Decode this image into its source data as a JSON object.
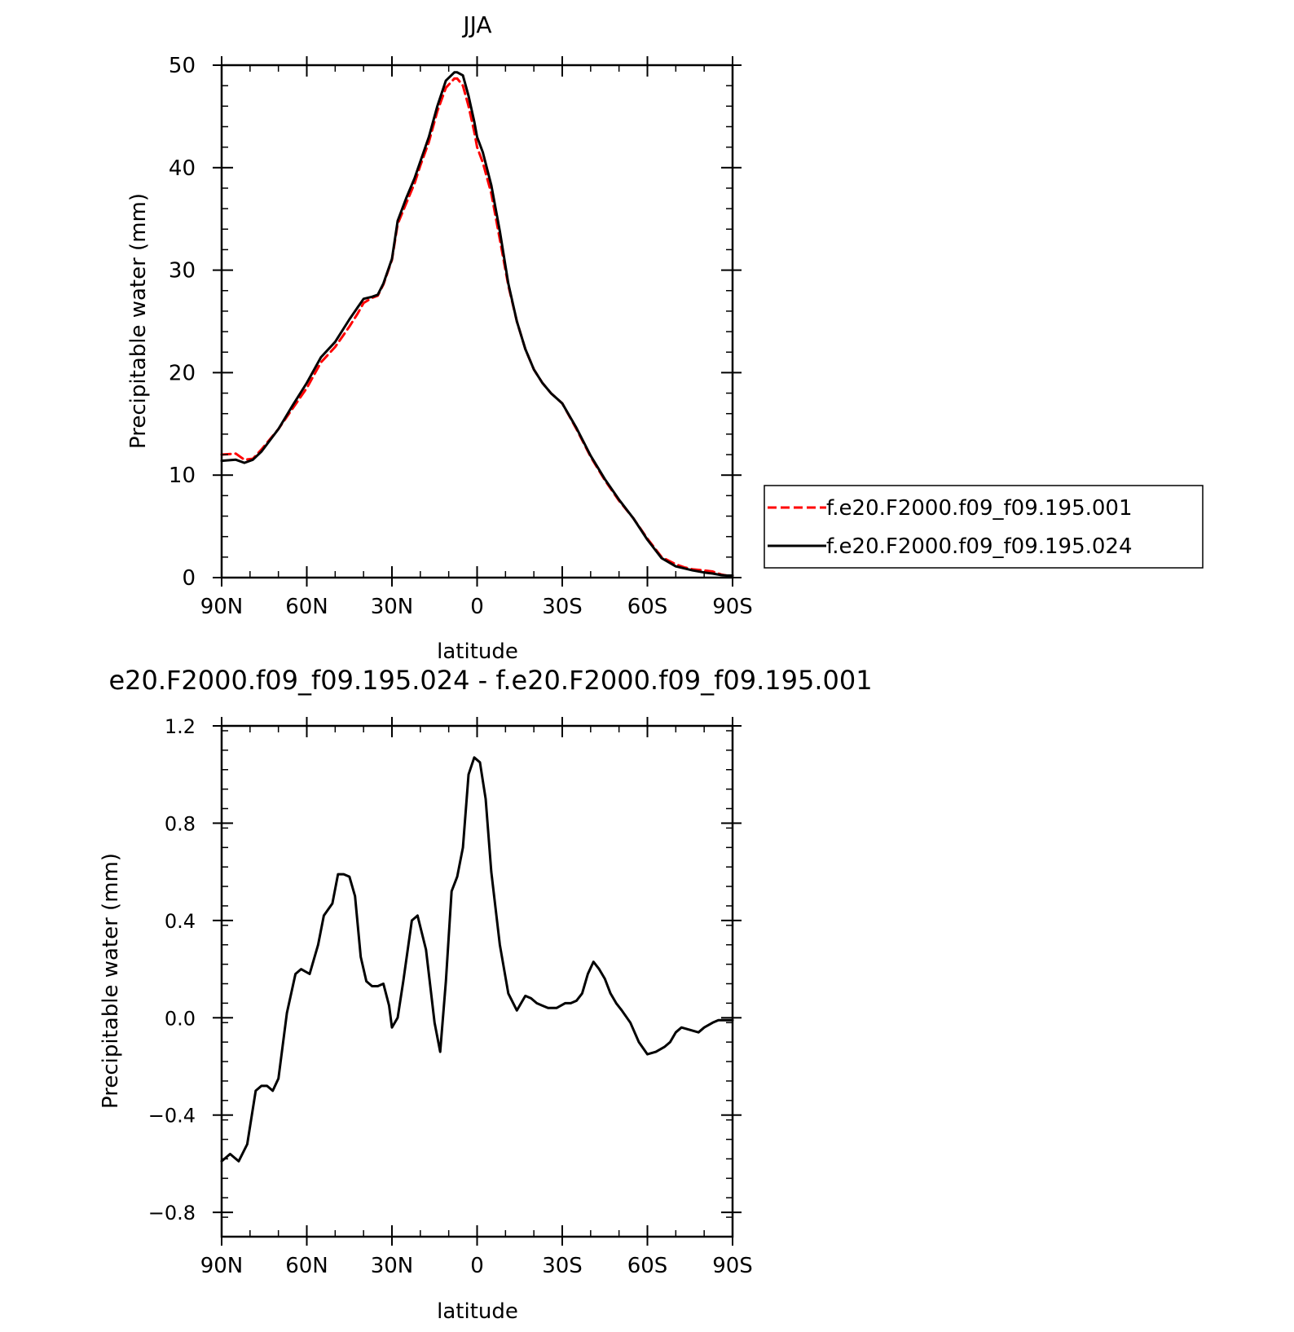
{
  "chart_data": [
    {
      "type": "line",
      "title": "JJA",
      "xlabel": "latitude",
      "ylabel": "Precipitable water (mm)",
      "x_domain": [
        90,
        -90
      ],
      "xtick_values": [
        90,
        60,
        30,
        0,
        -30,
        -60,
        -90
      ],
      "xtick_labels": [
        "90N",
        "60N",
        "30N",
        "0",
        "30S",
        "60S",
        "90S"
      ],
      "ylim": [
        0,
        50
      ],
      "ytick_values": [
        0,
        10,
        20,
        30,
        40,
        50
      ],
      "ytick_labels": [
        "0",
        "10",
        "20",
        "30",
        "40",
        "50"
      ],
      "grid": false,
      "legend_position": "right",
      "series": [
        {
          "name": "f.e20.F2000.f09_f09.195.001",
          "color": "#ff0000",
          "dash": "dashed",
          "x": [
            90,
            85,
            82,
            79,
            76,
            70,
            65,
            60,
            55,
            50,
            45,
            42,
            40,
            37,
            35,
            33,
            30,
            28,
            25,
            22,
            20,
            17,
            14,
            11,
            8,
            7,
            5,
            3,
            1,
            0,
            -2,
            -5,
            -8,
            -11,
            -14,
            -17,
            -20,
            -23,
            -26,
            -30,
            -35,
            -40,
            -45,
            -50,
            -55,
            -60,
            -65,
            -70,
            -73,
            -76,
            -80,
            -83,
            -86,
            -88,
            -90
          ],
          "y": [
            12.0,
            12.1,
            11.5,
            11.6,
            12.5,
            14.5,
            16.5,
            18.5,
            21.0,
            22.5,
            24.5,
            25.8,
            26.8,
            27.3,
            27.5,
            28.6,
            31.0,
            34.5,
            36.5,
            38.5,
            40.2,
            42.5,
            45.5,
            47.8,
            48.7,
            48.7,
            48.0,
            46.0,
            43.5,
            42.0,
            40.5,
            37.5,
            33.0,
            28.5,
            25.0,
            22.3,
            20.3,
            19.0,
            18.0,
            17.0,
            14.5,
            11.8,
            9.5,
            7.5,
            5.8,
            3.8,
            2.0,
            1.3,
            1.0,
            0.8,
            0.7,
            0.6,
            0.3,
            0.2,
            0.2
          ]
        },
        {
          "name": "f.e20.F2000.f09_f09.195.024",
          "color": "#000000",
          "dash": "solid",
          "x": [
            90,
            85,
            82,
            79,
            76,
            70,
            65,
            60,
            55,
            50,
            45,
            42,
            40,
            37,
            35,
            33,
            30,
            28,
            25,
            22,
            20,
            17,
            14,
            11,
            8,
            7,
            5,
            3,
            1,
            0,
            -2,
            -5,
            -8,
            -11,
            -14,
            -17,
            -20,
            -23,
            -26,
            -30,
            -35,
            -40,
            -45,
            -50,
            -55,
            -60,
            -65,
            -70,
            -73,
            -76,
            -80,
            -83,
            -86,
            -88,
            -90
          ],
          "y": [
            11.4,
            11.5,
            11.2,
            11.5,
            12.3,
            14.5,
            16.8,
            19.0,
            21.5,
            23.0,
            25.2,
            26.4,
            27.2,
            27.4,
            27.6,
            28.7,
            31.1,
            34.8,
            37.0,
            39.0,
            40.6,
            43.0,
            46.0,
            48.5,
            49.3,
            49.3,
            49.0,
            47.0,
            44.5,
            43.0,
            41.5,
            38.3,
            33.8,
            28.7,
            25.0,
            22.3,
            20.3,
            19.0,
            18.0,
            17.0,
            14.6,
            11.9,
            9.6,
            7.6,
            5.8,
            3.7,
            1.9,
            1.1,
            0.9,
            0.7,
            0.5,
            0.4,
            0.25,
            0.2,
            0.2
          ]
        }
      ]
    },
    {
      "type": "line",
      "title": "e20.F2000.f09_f09.195.024 - f.e20.F2000.f09_f09.195.001",
      "xlabel": "latitude",
      "ylabel": "Precipitable water (mm)",
      "x_domain": [
        90,
        -90
      ],
      "xtick_values": [
        90,
        60,
        30,
        0,
        -30,
        -60,
        -90
      ],
      "xtick_labels": [
        "90N",
        "60N",
        "30N",
        "0",
        "30S",
        "60S",
        "90S"
      ],
      "ylim": [
        -0.9,
        1.2
      ],
      "ytick_values": [
        -0.8,
        -0.4,
        0.0,
        0.4,
        0.8,
        1.2
      ],
      "ytick_labels": [
        "−0.8",
        "−0.4",
        "0.0",
        "0.4",
        "0.8",
        "1.2"
      ],
      "grid": false,
      "series": [
        {
          "color": "#000000",
          "dash": "solid",
          "x": [
            90,
            87,
            84,
            81,
            78,
            76,
            74,
            72,
            70,
            67,
            64,
            62,
            59,
            56,
            54,
            51,
            49,
            47,
            45,
            43,
            41,
            39,
            37,
            35,
            33,
            31,
            30,
            28,
            26,
            23,
            21,
            18,
            15,
            13,
            11,
            9,
            7,
            5,
            3,
            1,
            -1,
            -3,
            -5,
            -8,
            -11,
            -14,
            -17,
            -19,
            -21,
            -23,
            -25,
            -28,
            -31,
            -33,
            -35,
            -37,
            -39,
            -41,
            -43,
            -45,
            -47,
            -49,
            -51,
            -54,
            -57,
            -60,
            -63,
            -66,
            -68,
            -70,
            -72,
            -75,
            -78,
            -80,
            -83,
            -85,
            -87,
            -90
          ],
          "y": [
            -0.59,
            -0.56,
            -0.59,
            -0.52,
            -0.3,
            -0.28,
            -0.28,
            -0.3,
            -0.25,
            0.02,
            0.18,
            0.2,
            0.18,
            0.3,
            0.42,
            0.47,
            0.59,
            0.59,
            0.58,
            0.5,
            0.25,
            0.15,
            0.13,
            0.13,
            0.14,
            0.05,
            -0.04,
            0.0,
            0.15,
            0.4,
            0.42,
            0.28,
            -0.02,
            -0.14,
            0.15,
            0.52,
            0.58,
            0.7,
            1.0,
            1.07,
            1.05,
            0.9,
            0.6,
            0.3,
            0.1,
            0.03,
            0.09,
            0.08,
            0.06,
            0.05,
            0.04,
            0.04,
            0.06,
            0.06,
            0.07,
            0.1,
            0.18,
            0.23,
            0.2,
            0.16,
            0.1,
            0.06,
            0.03,
            -0.02,
            -0.1,
            -0.15,
            -0.14,
            -0.12,
            -0.1,
            -0.06,
            -0.04,
            -0.05,
            -0.06,
            -0.04,
            -0.02,
            -0.01,
            -0.01,
            -0.01
          ]
        }
      ]
    }
  ]
}
